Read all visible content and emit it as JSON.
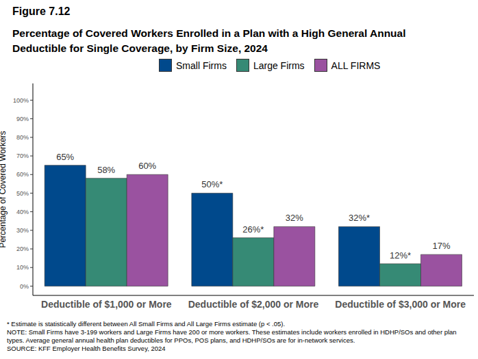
{
  "chart_data": {
    "type": "bar",
    "title": "Figure 7.12",
    "subtitle": "Percentage of Covered Workers Enrolled in a Plan with a High General Annual Deductible for Single Coverage, by Firm Size, 2024",
    "y_label": "Percentage of Covered Workers",
    "categories": [
      "Deductible of $1,000 or More",
      "Deductible of $2,000 or More",
      "Deductible of $3,000 or More"
    ],
    "series": [
      {
        "name": "Small Firms",
        "color": "#00498c",
        "values": [
          65,
          50,
          32
        ],
        "value_labels": [
          "65%",
          "50%*",
          "32%*"
        ]
      },
      {
        "name": "Large Firms",
        "color": "#368a75",
        "values": [
          58,
          26,
          12
        ],
        "value_labels": [
          "58%",
          "26%*",
          "12%*"
        ]
      },
      {
        "name": "ALL FIRMS",
        "color": "#9a52a0",
        "values": [
          60,
          32,
          17
        ],
        "value_labels": [
          "60%",
          "32%",
          "17%"
        ]
      }
    ],
    "ylim": [
      -5,
      109
    ],
    "yticks": [
      {
        "value": 0,
        "label": "0%"
      },
      {
        "value": 10,
        "label": "10%"
      },
      {
        "value": 20,
        "label": "20%"
      },
      {
        "value": 30,
        "label": "30%"
      },
      {
        "value": 40,
        "label": "40%"
      },
      {
        "value": 50,
        "label": "50%"
      },
      {
        "value": 60,
        "label": "60%"
      },
      {
        "value": 70,
        "label": "70%"
      },
      {
        "value": 80,
        "label": "80%"
      },
      {
        "value": 90,
        "label": "90%"
      },
      {
        "value": 100,
        "label": "100%"
      }
    ],
    "grid": false,
    "legend": "top",
    "data_labels": true,
    "notes": [
      "* Estimate is statistically different between All Small Firms and All Large Firms estimate (p < .05).",
      "NOTE: Small Firms have 3-199 workers and Large Firms have 200 or more workers. These estimates include workers enrolled in HDHP/SOs and other plan types. Average general annual health plan deductibles for PPOs, POS plans, and HDHP/SOs are for in-network services.",
      "SOURCE: KFF Employer Health Benefits Survey, 2024"
    ]
  }
}
